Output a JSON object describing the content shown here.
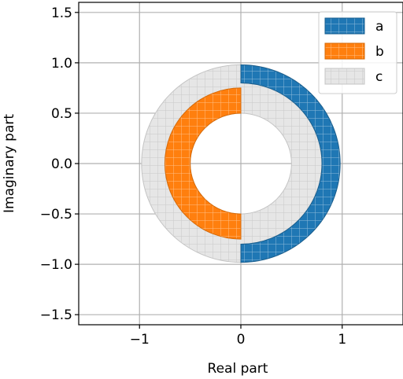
{
  "chart_data": {
    "type": "area",
    "title": "",
    "xlabel": "Real part",
    "ylabel": "Imaginary part",
    "xlim": [
      -1.6,
      1.6
    ],
    "ylim": [
      -1.6,
      1.6
    ],
    "xticks": [
      -1,
      0,
      1
    ],
    "xtick_labels": [
      "−1",
      "0",
      "1"
    ],
    "yticks": [
      -1.5,
      -1.0,
      -0.5,
      0.0,
      0.5,
      1.0,
      1.5
    ],
    "ytick_labels": [
      "−1.5",
      "−1.0",
      "−0.5",
      "0.0",
      "0.5",
      "1.0",
      "1.5"
    ],
    "grid": true,
    "legend_position": "top-right",
    "series": [
      {
        "name": "a",
        "shape": "half-annulus",
        "side": "right",
        "inner_radius": 0.8,
        "outer_radius": 0.98,
        "color": "#1f77b4",
        "hatch": "grid"
      },
      {
        "name": "b",
        "shape": "half-annulus",
        "side": "left",
        "inner_radius": 0.5,
        "outer_radius": 0.75,
        "color": "#ff7f0e",
        "hatch": "grid"
      },
      {
        "name": "c",
        "shape": "annulus-complement",
        "inner_radius": 0.5,
        "outer_radius": 0.98,
        "color": "#e6e6e6",
        "hatch": "grid"
      }
    ]
  }
}
